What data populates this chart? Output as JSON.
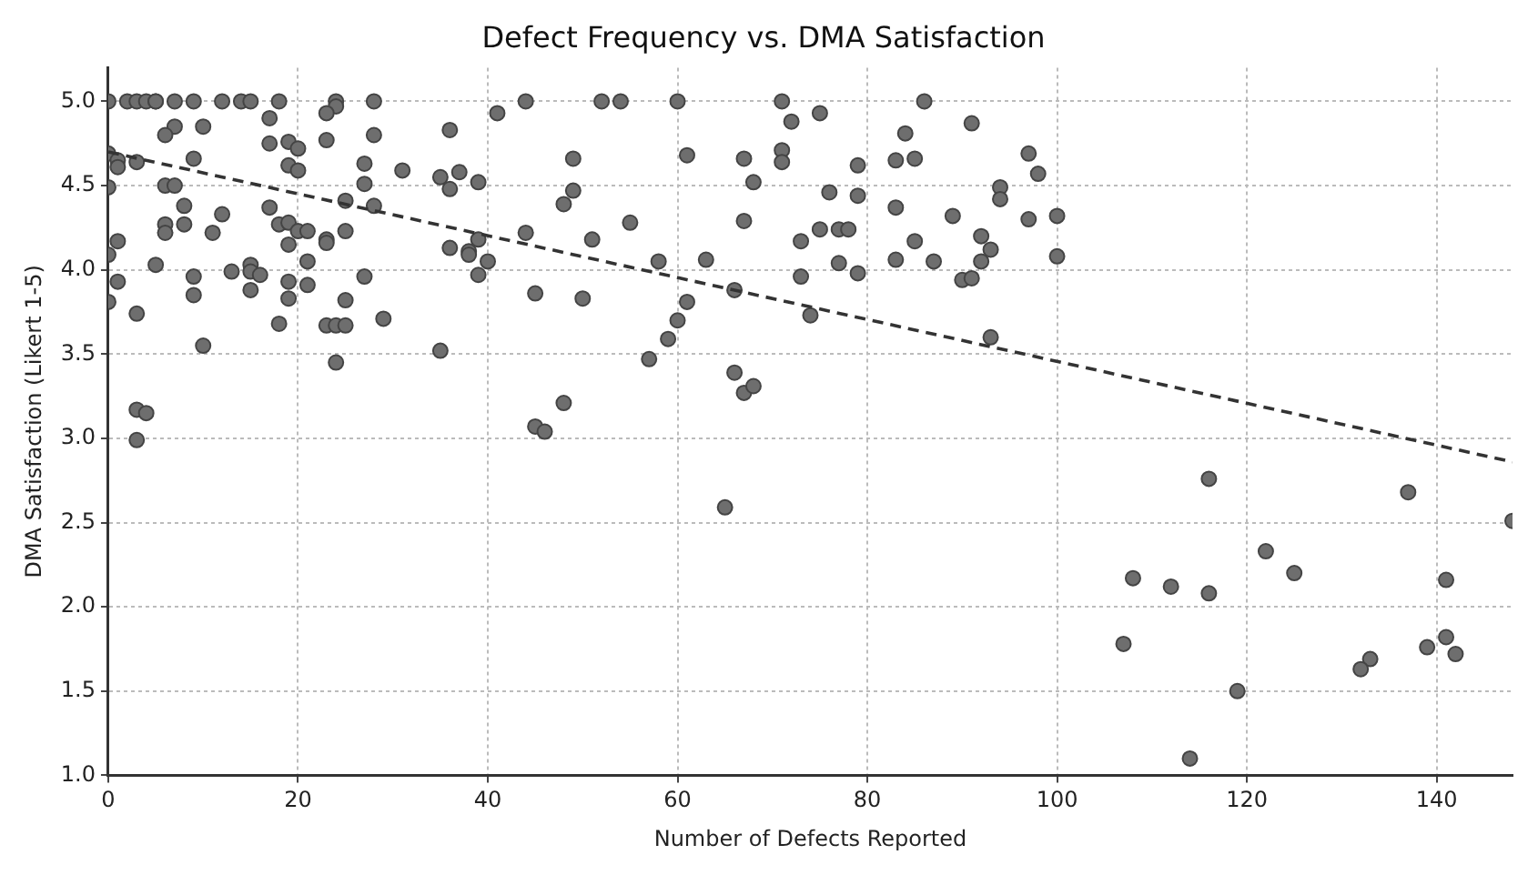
{
  "chart_data": {
    "type": "scatter",
    "title": "Defect Frequency vs. DMA Satisfaction",
    "xlabel": "Number of Defects Reported",
    "ylabel": "DMA Satisfaction (Likert 1-5)",
    "xlim": [
      0,
      148
    ],
    "xticks": [
      0,
      20,
      40,
      60,
      80,
      100,
      120,
      140
    ],
    "ylim": [
      1,
      5.2
    ],
    "yticks": [
      {
        "value": 1,
        "label": "1.0"
      },
      {
        "value": 1.5,
        "label": "1.5"
      },
      {
        "value": 2,
        "label": "2.0"
      },
      {
        "value": 2.5,
        "label": "2.5"
      },
      {
        "value": 3,
        "label": "3.0"
      },
      {
        "value": 3.5,
        "label": "3.5"
      },
      {
        "value": 4,
        "label": "4.0"
      },
      {
        "value": 4.5,
        "label": "4.5"
      },
      {
        "value": 5,
        "label": "5.0"
      }
    ],
    "grid": true,
    "legend": false,
    "series": [
      {
        "type": "scatter",
        "marker": "circle",
        "color": "#6e6e6e",
        "x": [
          0,
          2,
          3,
          4,
          5,
          5,
          7,
          9,
          12,
          14,
          15,
          18,
          24,
          24,
          23,
          28,
          44,
          41,
          17,
          10,
          7,
          6,
          28,
          36,
          23,
          17,
          19,
          20,
          0,
          1,
          1,
          3,
          9,
          19,
          20,
          27,
          31,
          35,
          37,
          36,
          39,
          0,
          6,
          7,
          8,
          17,
          18,
          19,
          20,
          21,
          25,
          28,
          27,
          25,
          23,
          23,
          19,
          1,
          6,
          6,
          8,
          12,
          11,
          36,
          38,
          38,
          39,
          40,
          44,
          0,
          5,
          13,
          15,
          15,
          16,
          21,
          9,
          27,
          39,
          1,
          19,
          21,
          9,
          15,
          19,
          25,
          45,
          0,
          3,
          18,
          23,
          24,
          25,
          29,
          10,
          35,
          24,
          3,
          4,
          3,
          45,
          46,
          48,
          65,
          67,
          68,
          52,
          54,
          60,
          71,
          86,
          72,
          75,
          91,
          84,
          49,
          61,
          67,
          71,
          71,
          79,
          83,
          85,
          97,
          98,
          49,
          48,
          68,
          76,
          79,
          83,
          94,
          94,
          89,
          97,
          67,
          51,
          55,
          73,
          75,
          77,
          78,
          85,
          92,
          93,
          58,
          63,
          77,
          79,
          83,
          87,
          92,
          90,
          91,
          73,
          50,
          66,
          61,
          60,
          74,
          59,
          93,
          57,
          66,
          100,
          100,
          116,
          137,
          148,
          122,
          125,
          108,
          112,
          116,
          141,
          107,
          141,
          139,
          142,
          133,
          132,
          119,
          114
        ],
        "values": [
          5,
          5,
          5,
          5,
          5,
          5,
          5,
          5,
          5,
          5,
          5,
          5,
          5,
          4.97,
          4.93,
          5,
          5,
          4.93,
          4.9,
          4.85,
          4.85,
          4.8,
          4.8,
          4.83,
          4.77,
          4.75,
          4.76,
          4.72,
          4.69,
          4.65,
          4.61,
          4.64,
          4.66,
          4.62,
          4.59,
          4.63,
          4.59,
          4.55,
          4.58,
          4.48,
          4.52,
          4.49,
          4.5,
          4.5,
          4.38,
          4.37,
          4.27,
          4.28,
          4.23,
          4.23,
          4.41,
          4.38,
          4.51,
          4.23,
          4.18,
          4.16,
          4.15,
          4.17,
          4.27,
          4.22,
          4.27,
          4.33,
          4.22,
          4.13,
          4.11,
          4.09,
          4.18,
          4.05,
          4.22,
          4.09,
          4.03,
          3.99,
          4.03,
          3.99,
          3.97,
          4.05,
          3.96,
          3.96,
          3.97,
          3.93,
          3.93,
          3.91,
          3.85,
          3.88,
          3.83,
          3.82,
          3.86,
          3.81,
          3.74,
          3.68,
          3.67,
          3.67,
          3.67,
          3.71,
          3.55,
          3.52,
          3.45,
          3.17,
          3.15,
          2.99,
          3.07,
          3.04,
          3.21,
          2.59,
          3.27,
          3.31,
          5,
          5,
          5,
          5,
          5,
          4.88,
          4.93,
          4.87,
          4.81,
          4.66,
          4.68,
          4.66,
          4.71,
          4.64,
          4.62,
          4.65,
          4.66,
          4.69,
          4.57,
          4.47,
          4.39,
          4.52,
          4.46,
          4.44,
          4.37,
          4.49,
          4.42,
          4.32,
          4.3,
          4.29,
          4.18,
          4.28,
          4.17,
          4.24,
          4.24,
          4.24,
          4.17,
          4.2,
          4.12,
          4.05,
          4.06,
          4.04,
          3.98,
          4.06,
          4.05,
          4.05,
          3.94,
          3.95,
          3.96,
          3.83,
          3.88,
          3.81,
          3.7,
          3.73,
          3.59,
          3.6,
          3.47,
          3.39,
          4.32,
          4.08,
          2.76,
          2.68,
          2.51,
          2.33,
          2.2,
          2.17,
          2.12,
          2.08,
          2.16,
          1.78,
          1.82,
          1.76,
          1.72,
          1.69,
          1.63,
          1.5,
          1.1
        ]
      },
      {
        "type": "line",
        "marker": "none",
        "line_style": "dashed",
        "color": "#333333",
        "x": [
          0,
          148
        ],
        "values": [
          4.7,
          2.86
        ]
      }
    ]
  }
}
